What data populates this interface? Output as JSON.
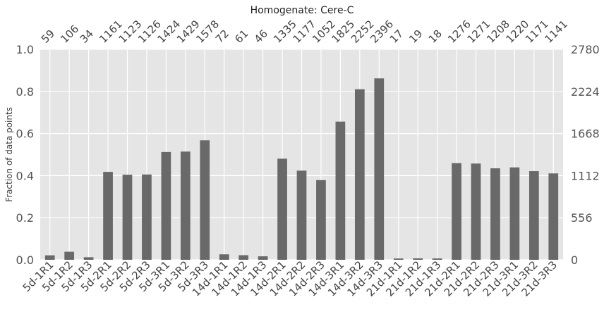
{
  "chart_data": {
    "type": "bar",
    "title": "Homogenate: Cere-C",
    "ylabel": "Fraction of data points",
    "xlabel": "",
    "ylim": [
      0,
      1.0
    ],
    "y_ticks": [
      "0.0",
      "0.2",
      "0.4",
      "0.6",
      "0.8",
      "1.0"
    ],
    "y_tick_values": [
      0,
      0.2,
      0.4,
      0.6,
      0.8,
      1.0
    ],
    "right_axis_ticks": [
      "0",
      "556",
      "1112",
      "1668",
      "2224",
      "2780"
    ],
    "right_axis_max": 2780,
    "grid": true,
    "bar_color": "#696969",
    "background_color": "#e5e5e5",
    "grid_color": "#ffffff",
    "categories": [
      "5d-1R1",
      "5d-1R2",
      "5d-1R3",
      "5d-2R1",
      "5d-2R2",
      "5d-2R3",
      "5d-3R1",
      "5d-3R2",
      "5d-3R3",
      "14d-1R1",
      "14d-1R2",
      "14d-1R3",
      "14d-2R1",
      "14d-2R2",
      "14d-2R3",
      "14d-3R1",
      "14d-3R2",
      "14d-3R3",
      "21d-1R1",
      "21d-1R2",
      "21d-1R3",
      "21d-2R1",
      "21d-2R2",
      "21d-2R3",
      "21d-3R1",
      "21d-3R2",
      "21d-3R3"
    ],
    "counts": [
      "59",
      "106",
      "34",
      "1161",
      "1123",
      "1126",
      "1424",
      "1429",
      "1578",
      "72",
      "61",
      "46",
      "1335",
      "1177",
      "1052",
      "1825",
      "2252",
      "2396",
      "17",
      "19",
      "18",
      "1276",
      "1271",
      "1208",
      "1220",
      "1171",
      "1141"
    ],
    "values": [
      59,
      106,
      34,
      1161,
      1123,
      1126,
      1424,
      1429,
      1578,
      72,
      61,
      46,
      1335,
      1177,
      1052,
      1825,
      2252,
      2396,
      17,
      19,
      18,
      1276,
      1271,
      1208,
      1220,
      1171,
      1141
    ]
  }
}
